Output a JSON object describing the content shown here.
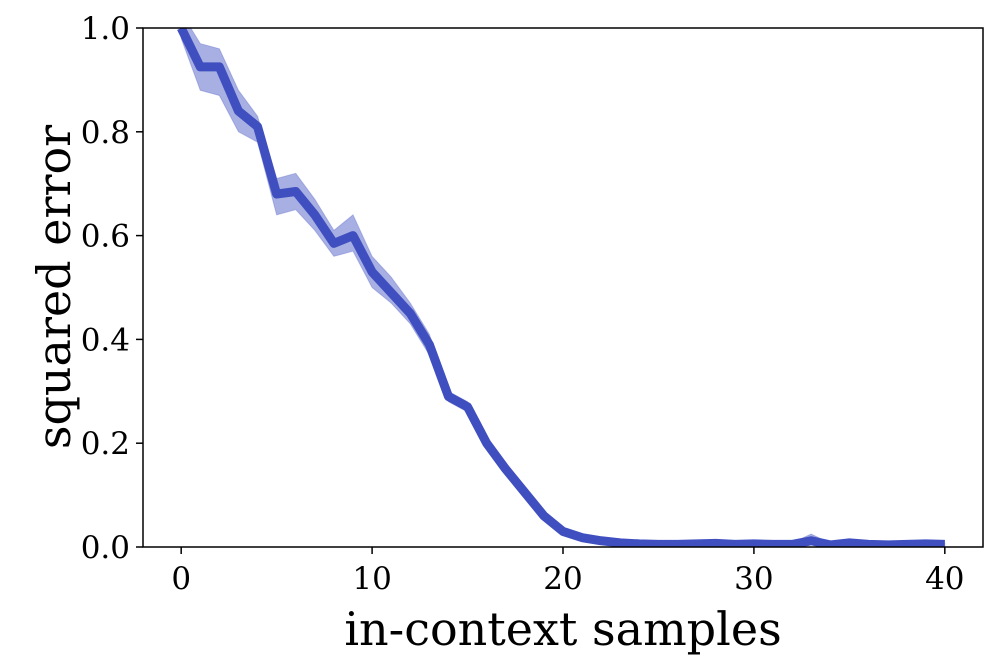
{
  "chart_data": {
    "type": "line",
    "x_label": "in-context samples",
    "y_label": "squared error",
    "x": [
      0,
      1,
      2,
      3,
      4,
      5,
      6,
      7,
      8,
      9,
      10,
      11,
      12,
      13,
      14,
      15,
      16,
      17,
      18,
      19,
      20,
      21,
      22,
      23,
      24,
      25,
      26,
      27,
      28,
      29,
      30,
      31,
      32,
      33,
      34,
      35,
      36,
      37,
      38,
      39,
      40
    ],
    "series": [
      {
        "color": "#3f4fc0",
        "values": [
          1.0,
          0.925,
          0.925,
          0.84,
          0.81,
          0.68,
          0.685,
          0.64,
          0.585,
          0.6,
          0.53,
          0.49,
          0.45,
          0.39,
          0.29,
          0.27,
          0.2,
          0.15,
          0.105,
          0.06,
          0.03,
          0.018,
          0.012,
          0.008,
          0.006,
          0.005,
          0.005,
          0.006,
          0.007,
          0.005,
          0.006,
          0.005,
          0.005,
          0.012,
          0.004,
          0.008,
          0.005,
          0.004,
          0.005,
          0.006,
          0.005
        ],
        "upper": [
          1.03,
          0.97,
          0.96,
          0.88,
          0.83,
          0.71,
          0.72,
          0.67,
          0.61,
          0.64,
          0.56,
          0.52,
          0.47,
          0.41,
          0.3,
          0.28,
          0.21,
          0.16,
          0.11,
          0.065,
          0.035,
          0.022,
          0.015,
          0.01,
          0.009,
          0.008,
          0.008,
          0.009,
          0.01,
          0.008,
          0.009,
          0.008,
          0.008,
          0.025,
          0.007,
          0.012,
          0.008,
          0.007,
          0.008,
          0.009,
          0.008
        ],
        "lower": [
          0.98,
          0.88,
          0.87,
          0.8,
          0.78,
          0.64,
          0.65,
          0.61,
          0.56,
          0.57,
          0.5,
          0.47,
          0.43,
          0.37,
          0.28,
          0.26,
          0.19,
          0.14,
          0.1,
          0.055,
          0.025,
          0.014,
          0.009,
          0.005,
          0.003,
          0.002,
          0.002,
          0.003,
          0.004,
          0.002,
          0.003,
          0.002,
          0.002,
          0.004,
          0.001,
          0.004,
          0.002,
          0.001,
          0.002,
          0.003,
          0.002
        ]
      }
    ],
    "xlim": [
      -2,
      42
    ],
    "ylim": [
      0,
      1
    ],
    "xticks": [
      0,
      10,
      20,
      30,
      40
    ],
    "yticks": [
      {
        "value": 0,
        "label": "0.0"
      },
      0.2,
      0.4,
      0.6,
      0.8,
      {
        "value": 1,
        "label": "1.0"
      }
    ],
    "grid": false
  }
}
